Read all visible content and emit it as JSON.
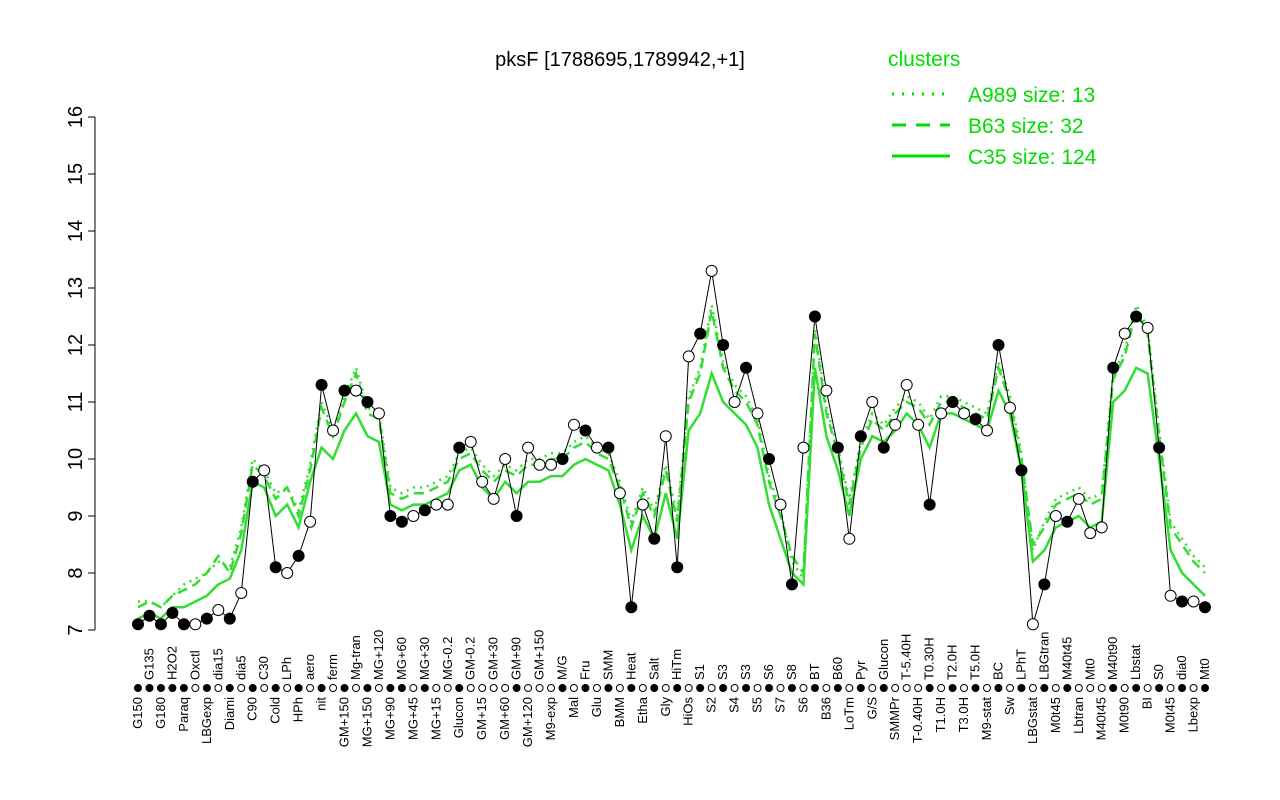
{
  "chart_data": {
    "type": "line",
    "title": "pksF [1788695,1789942,+1]",
    "xlabel": "",
    "ylabel": "",
    "ylim": [
      7,
      16
    ],
    "yticks": [
      7,
      8,
      9,
      10,
      11,
      12,
      13,
      14,
      15,
      16
    ],
    "grid": false,
    "legend": {
      "title": "clusters",
      "placement": "top-right",
      "color": "#00dd00",
      "entries": [
        {
          "label": "A989 size: 13",
          "style": "dotted"
        },
        {
          "label": "B63 size: 32",
          "style": "dashed"
        },
        {
          "label": "C35 size: 124",
          "style": "solid"
        }
      ]
    },
    "points": {
      "labels": [
        "G150",
        "G135",
        "G180",
        "H2O2",
        "Paraq",
        "Oxctl",
        "LBGexp",
        "dia15",
        "Diami",
        "dia5",
        "C90",
        "C30",
        "Cold",
        "LPh",
        "HPh",
        "aero",
        "nit",
        "ferm",
        "GM+150",
        "Mg-tran",
        "MG+150",
        "MG+120",
        "MG+90",
        "MG+60",
        "MG+45",
        "MG+30",
        "MG+15",
        "MG-0.2",
        "Glucon",
        "GM-0.2",
        "GM+15",
        "GM+30",
        "GM+60",
        "GM+90",
        "GM+120",
        "GM+150",
        "M9-exp",
        "M/G",
        "Mal",
        "Fru",
        "Glu",
        "SMM",
        "BMM",
        "Heat",
        "Etha",
        "Salt",
        "Gly",
        "HiTm",
        "HiOs",
        "S1",
        "S2",
        "S3",
        "S4",
        "S3",
        "S5",
        "S6",
        "S7",
        "S8",
        "S6",
        "BT",
        "B36",
        "B60",
        "LoTm",
        "Pyr",
        "G/S",
        "Glucon",
        "SMMPr",
        "T-5.40H",
        "T-0.40H",
        "T0.30H",
        "T1.0H",
        "T2.0H",
        "T3.0H",
        "T5.0H",
        "M9-stat",
        "BC",
        "Sw",
        "LPhT",
        "LBGstat",
        "LBGtran",
        "M0t45",
        "M40t45",
        "Lbtran",
        "Mt0",
        "M40t45",
        "M40t90",
        "M0t90",
        "Lbstat",
        "BI",
        "S0",
        "M0t45",
        "dia0",
        "Lbexp",
        "Mt0"
      ],
      "values": [
        7.1,
        7.25,
        7.1,
        7.3,
        7.1,
        7.1,
        7.2,
        7.35,
        7.2,
        7.65,
        9.6,
        9.8,
        8.1,
        8.0,
        8.3,
        8.9,
        11.3,
        10.5,
        11.2,
        11.2,
        11.0,
        10.8,
        9.0,
        8.9,
        9.0,
        9.1,
        9.2,
        9.2,
        10.2,
        10.3,
        9.6,
        9.3,
        10.0,
        9.0,
        10.2,
        9.9,
        9.9,
        10.0,
        10.6,
        10.5,
        10.2,
        10.2,
        9.4,
        7.4,
        9.2,
        8.6,
        10.4,
        8.1,
        11.8,
        12.2,
        13.3,
        12.0,
        11.0,
        11.6,
        10.8,
        10.0,
        9.2,
        7.8,
        10.2,
        12.5,
        11.2,
        10.2,
        8.6,
        10.4,
        11.0,
        10.2,
        10.6,
        11.3,
        10.6,
        9.2,
        10.8,
        11.0,
        10.8,
        10.7,
        10.5,
        12.0,
        10.9,
        9.8,
        7.1,
        7.8,
        9.0,
        8.9,
        9.3,
        8.7,
        8.8,
        11.6,
        12.2,
        12.5,
        12.3,
        10.2,
        7.6,
        7.5,
        7.5,
        7.4
      ],
      "filled": [
        1,
        1,
        1,
        1,
        1,
        0,
        1,
        0,
        1,
        0,
        1,
        0,
        1,
        0,
        1,
        0,
        1,
        0,
        1,
        0,
        1,
        0,
        1,
        1,
        0,
        1,
        0,
        0,
        1,
        0,
        0,
        0,
        0,
        1,
        0,
        0,
        0,
        1,
        0,
        1,
        0,
        1,
        0,
        1,
        0,
        1,
        0,
        1,
        0,
        1,
        0,
        1,
        0,
        1,
        0,
        1,
        0,
        1,
        0,
        1,
        0,
        1,
        0,
        1,
        0,
        1,
        0,
        0,
        0,
        1,
        0,
        1,
        0,
        1,
        0,
        1,
        0,
        1,
        0,
        1,
        0,
        1,
        0,
        0,
        0,
        1,
        0,
        1,
        0,
        1,
        0,
        1,
        0,
        1
      ]
    },
    "series": [
      {
        "name": "A989 size: 13",
        "style": "dotted",
        "values": [
          7.5,
          7.5,
          7.4,
          7.6,
          7.8,
          7.9,
          8.0,
          8.2,
          8.1,
          8.8,
          10.0,
          9.8,
          9.4,
          9.5,
          9.1,
          9.9,
          11.0,
          10.5,
          11.1,
          11.6,
          10.9,
          10.8,
          9.5,
          9.4,
          9.5,
          9.5,
          9.6,
          9.7,
          10.1,
          10.2,
          9.9,
          9.7,
          9.9,
          9.8,
          10.0,
          10.0,
          10.1,
          10.1,
          10.3,
          10.4,
          10.2,
          10.1,
          9.6,
          8.9,
          9.5,
          9.1,
          9.9,
          9.0,
          11.1,
          11.6,
          12.7,
          11.7,
          11.3,
          11.1,
          10.7,
          9.7,
          9.1,
          8.2,
          7.9,
          12.3,
          10.9,
          10.2,
          9.3,
          10.3,
          10.8,
          10.6,
          10.9,
          11.1,
          11.0,
          10.7,
          11.1,
          11.1,
          11.0,
          10.9,
          10.8,
          11.7,
          11.1,
          10.1,
          8.4,
          8.9,
          9.3,
          9.4,
          9.5,
          9.3,
          9.4,
          11.5,
          11.9,
          12.7,
          12.3,
          10.5,
          8.9,
          8.6,
          8.3,
          8.1
        ]
      },
      {
        "name": "B63 size: 32",
        "style": "dashed",
        "values": [
          7.4,
          7.5,
          7.4,
          7.6,
          7.7,
          7.8,
          8.0,
          8.3,
          8.0,
          8.7,
          9.9,
          9.7,
          9.3,
          9.5,
          9.0,
          9.8,
          10.9,
          10.4,
          11.0,
          11.5,
          10.8,
          10.7,
          9.4,
          9.3,
          9.4,
          9.4,
          9.5,
          9.6,
          10.0,
          10.1,
          9.8,
          9.6,
          9.8,
          9.7,
          9.9,
          9.9,
          10.0,
          10.0,
          10.2,
          10.3,
          10.1,
          10.0,
          9.5,
          8.8,
          9.4,
          9.0,
          9.8,
          8.9,
          11.0,
          11.5,
          12.6,
          11.6,
          11.2,
          11.0,
          10.6,
          9.6,
          9.0,
          8.3,
          8.0,
          12.2,
          10.8,
          10.1,
          9.2,
          10.2,
          10.7,
          10.5,
          10.8,
          11.0,
          10.9,
          10.6,
          11.0,
          11.0,
          10.9,
          10.8,
          10.7,
          11.6,
          11.0,
          10.0,
          8.5,
          8.8,
          9.2,
          9.3,
          9.4,
          9.2,
          9.3,
          11.4,
          11.8,
          12.6,
          12.2,
          10.4,
          8.8,
          8.5,
          8.2,
          8.0
        ]
      },
      {
        "name": "C35 size: 124",
        "style": "solid",
        "values": [
          7.2,
          7.3,
          7.2,
          7.4,
          7.4,
          7.5,
          7.6,
          7.8,
          7.9,
          8.4,
          9.6,
          9.5,
          9.0,
          9.2,
          8.8,
          9.6,
          10.2,
          10.0,
          10.5,
          10.8,
          10.4,
          10.3,
          9.2,
          9.1,
          9.2,
          9.2,
          9.3,
          9.4,
          9.8,
          9.9,
          9.5,
          9.3,
          9.6,
          9.4,
          9.6,
          9.6,
          9.7,
          9.7,
          9.9,
          10.0,
          9.9,
          9.8,
          9.2,
          8.4,
          9.0,
          8.6,
          9.4,
          8.6,
          10.5,
          10.8,
          11.5,
          11.0,
          10.8,
          10.6,
          10.2,
          9.2,
          8.6,
          8.0,
          7.8,
          11.6,
          10.4,
          9.8,
          9.0,
          10.0,
          10.4,
          10.3,
          10.5,
          10.8,
          10.6,
          10.2,
          10.8,
          10.8,
          10.7,
          10.6,
          10.5,
          11.2,
          10.8,
          9.8,
          8.2,
          8.4,
          8.8,
          8.9,
          9.0,
          8.8,
          8.9,
          11.0,
          11.2,
          11.6,
          11.5,
          10.0,
          8.4,
          8.0,
          7.8,
          7.6
        ]
      }
    ]
  }
}
